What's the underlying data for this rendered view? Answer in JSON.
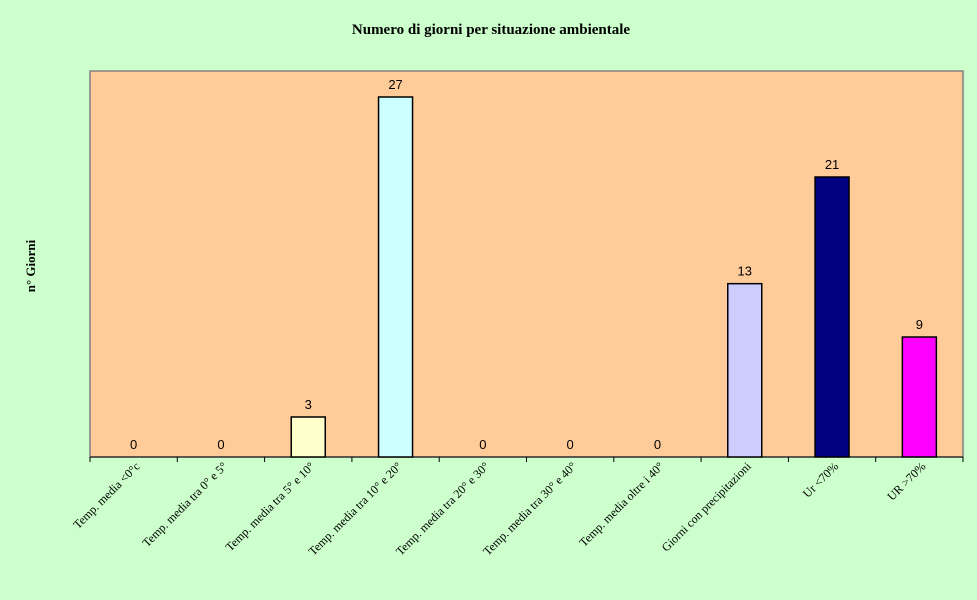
{
  "chart_data": {
    "type": "bar",
    "title": "Numero di giorni per situazione ambientale",
    "xlabel": "",
    "ylabel": "n° Giorni",
    "ylim": [
      0,
      27
    ],
    "grid": false,
    "legend": "none",
    "categories": [
      "Temp. media <0°c",
      "Temp. media tra 0° e 5°",
      "Temp. media tra 5° e 10°",
      "Temp. media tra 10° e 20°",
      "Temp. media tra 20° e 30°",
      "Temp. media tra 30° e 40°",
      "Temp. media oltre i 40°",
      "Giorni con precipitazioni",
      "Ur <70%",
      "UR >70%"
    ],
    "values": [
      0,
      0,
      3,
      27,
      0,
      0,
      0,
      13,
      21,
      9
    ],
    "bar_colors": [
      "#ffffff",
      "#ffffff",
      "#ffffcc",
      "#ccffff",
      "#ffffff",
      "#ffffff",
      "#ffffff",
      "#ccccff",
      "#000080",
      "#ff00ff"
    ],
    "plot_background": "#ffcc99",
    "page_background": "#ccffcc"
  }
}
